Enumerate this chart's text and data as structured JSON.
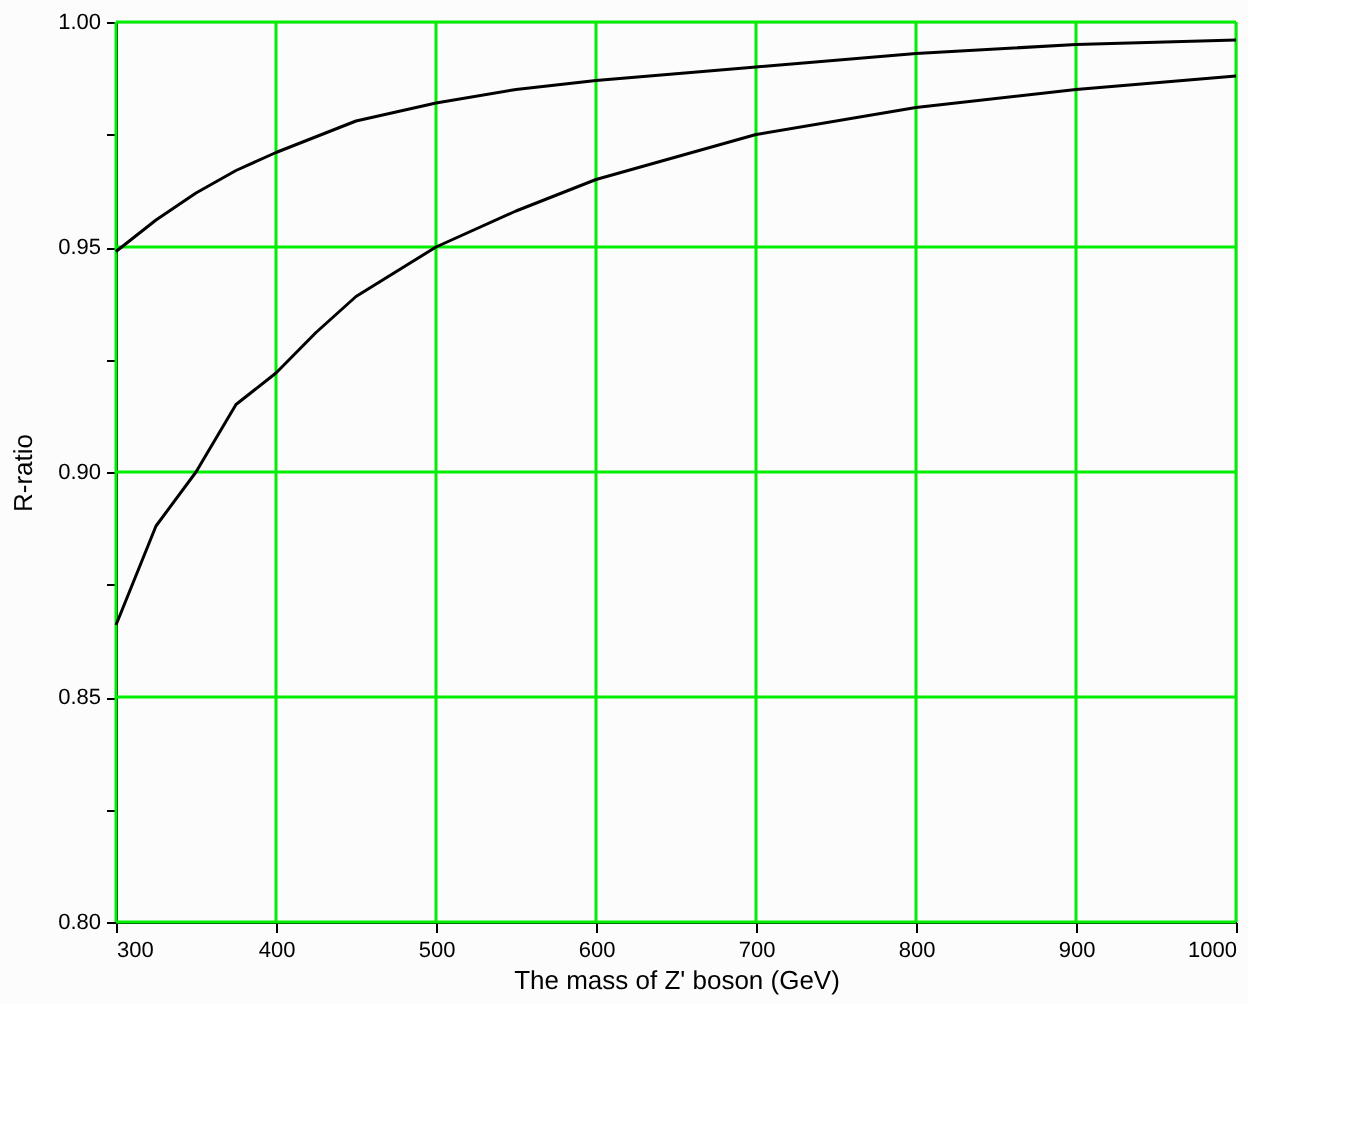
{
  "chart_data": {
    "type": "line",
    "xlabel": "The mass of Z' boson (GeV)",
    "ylabel": "R-ratio",
    "xlim": [
      300,
      1000
    ],
    "xticks": [
      300,
      400,
      500,
      600,
      700,
      800,
      900,
      1000
    ],
    "ylim": [
      0.8,
      1.0
    ],
    "yticks": [
      {
        "value": 0.8,
        "label": "0.80"
      },
      {
        "value": 0.825,
        "label": null
      },
      {
        "value": 0.85,
        "label": "0.85"
      },
      {
        "value": 0.875,
        "label": null
      },
      {
        "value": 0.9,
        "label": "0.90"
      },
      {
        "value": 0.925,
        "label": null
      },
      {
        "value": 0.95,
        "label": "0.95"
      },
      {
        "value": 0.975,
        "label": null
      },
      {
        "value": 1.0,
        "label": "1.00"
      }
    ],
    "grid": true,
    "marker": "none",
    "line_style": "solid",
    "series": [
      {
        "color": "#000000",
        "x": [
          300,
          325,
          350,
          375,
          400,
          450,
          500,
          550,
          600,
          700,
          800,
          900,
          1000
        ],
        "values": [
          0.949,
          0.956,
          0.962,
          0.967,
          0.971,
          0.978,
          0.982,
          0.985,
          0.987,
          0.99,
          0.993,
          0.995,
          0.996
        ]
      },
      {
        "color": "#000000",
        "x": [
          300,
          325,
          350,
          375,
          400,
          425,
          450,
          500,
          550,
          600,
          650,
          700,
          800,
          900,
          1000
        ],
        "values": [
          0.866,
          0.888,
          0.9,
          0.915,
          0.922,
          0.931,
          0.939,
          0.95,
          0.958,
          0.965,
          0.97,
          0.975,
          0.981,
          0.985,
          0.988
        ]
      }
    ]
  }
}
